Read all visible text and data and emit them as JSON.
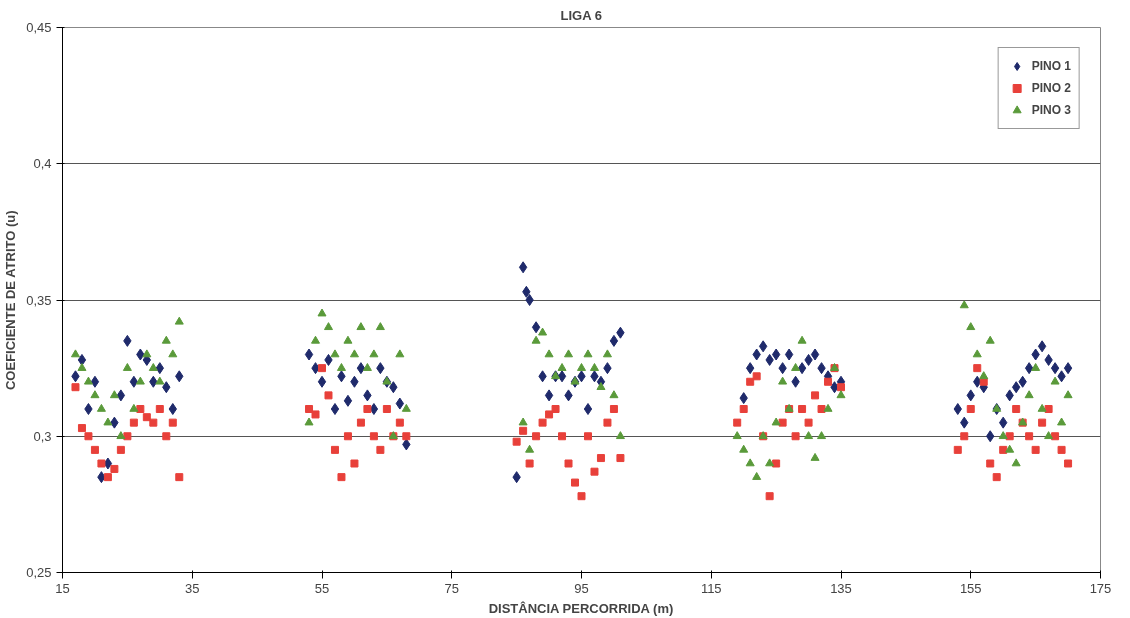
{
  "chart_data": {
    "type": "scatter",
    "title": "LIGA 6",
    "xlabel": "DISTÂNCIA PERCORRIDA (m)",
    "ylabel": "COEFICIENTE DE ATRITO (u)",
    "xlim": [
      15,
      175
    ],
    "xticks": [
      15,
      35,
      55,
      75,
      95,
      115,
      135,
      155,
      175
    ],
    "ylim": [
      0.25,
      0.45
    ],
    "yticks": [
      {
        "value": 0.25,
        "label": "0,25"
      },
      {
        "value": 0.3,
        "label": "0,3"
      },
      {
        "value": 0.35,
        "label": "0,35"
      },
      {
        "value": 0.4,
        "label": "0,4"
      },
      {
        "value": 0.45,
        "label": "0,45"
      }
    ],
    "grid": "y",
    "legend": "top right",
    "series": [
      {
        "name": "PINO 1",
        "color": "#1f2a6b",
        "marker": "diamond",
        "x": [
          17,
          18,
          19,
          20,
          21,
          22,
          23,
          24,
          25,
          26,
          27,
          28,
          29,
          30,
          31,
          32,
          33,
          53,
          54,
          55,
          56,
          57,
          58,
          59,
          60,
          61,
          62,
          63,
          64,
          65,
          66,
          67,
          68,
          85,
          86,
          86.5,
          87,
          88,
          89,
          90,
          91,
          92,
          93,
          94,
          95,
          96,
          97,
          98,
          99,
          100,
          101,
          120,
          121,
          122,
          123,
          124,
          125,
          126,
          127,
          128,
          129,
          130,
          131,
          132,
          133,
          134,
          135,
          153,
          154,
          155,
          156,
          157,
          158,
          159,
          160,
          161,
          162,
          163,
          164,
          165,
          166,
          167,
          168,
          169,
          170
        ],
        "values": [
          0.322,
          0.328,
          0.31,
          0.32,
          0.285,
          0.29,
          0.305,
          0.315,
          0.335,
          0.32,
          0.33,
          0.328,
          0.32,
          0.325,
          0.318,
          0.31,
          0.322,
          0.33,
          0.325,
          0.32,
          0.328,
          0.31,
          0.322,
          0.313,
          0.32,
          0.325,
          0.315,
          0.31,
          0.325,
          0.32,
          0.318,
          0.312,
          0.297,
          0.285,
          0.362,
          0.353,
          0.35,
          0.34,
          0.322,
          0.315,
          0.322,
          0.322,
          0.315,
          0.32,
          0.322,
          0.31,
          0.322,
          0.32,
          0.325,
          0.335,
          0.338,
          0.314,
          0.325,
          0.33,
          0.333,
          0.328,
          0.33,
          0.325,
          0.33,
          0.32,
          0.325,
          0.328,
          0.33,
          0.325,
          0.322,
          0.318,
          0.32,
          0.31,
          0.305,
          0.315,
          0.32,
          0.318,
          0.3,
          0.31,
          0.305,
          0.315,
          0.318,
          0.32,
          0.325,
          0.33,
          0.333,
          0.328,
          0.325,
          0.322,
          0.325
        ]
      },
      {
        "name": "PINO 2",
        "color": "#e8403a",
        "marker": "square",
        "x": [
          17,
          18,
          19,
          20,
          21,
          22,
          23,
          24,
          25,
          26,
          27,
          28,
          29,
          30,
          31,
          32,
          33,
          53,
          54,
          55,
          56,
          57,
          58,
          59,
          60,
          61,
          62,
          63,
          64,
          65,
          66,
          67,
          68,
          85,
          86,
          87,
          88,
          89,
          90,
          91,
          92,
          93,
          94,
          95,
          96,
          97,
          98,
          99,
          100,
          101,
          119,
          120,
          121,
          122,
          123,
          124,
          125,
          126,
          127,
          128,
          129,
          130,
          131,
          132,
          133,
          134,
          135,
          153,
          154,
          155,
          156,
          157,
          158,
          159,
          160,
          161,
          162,
          163,
          164,
          165,
          166,
          167,
          168,
          169,
          170
        ],
        "values": [
          0.318,
          0.303,
          0.3,
          0.295,
          0.29,
          0.285,
          0.288,
          0.295,
          0.3,
          0.305,
          0.31,
          0.307,
          0.305,
          0.31,
          0.3,
          0.305,
          0.285,
          0.31,
          0.308,
          0.325,
          0.315,
          0.295,
          0.285,
          0.3,
          0.29,
          0.305,
          0.31,
          0.3,
          0.295,
          0.31,
          0.3,
          0.305,
          0.3,
          0.298,
          0.302,
          0.29,
          0.3,
          0.305,
          0.308,
          0.31,
          0.3,
          0.29,
          0.283,
          0.278,
          0.3,
          0.287,
          0.292,
          0.305,
          0.31,
          0.292,
          0.305,
          0.31,
          0.32,
          0.322,
          0.3,
          0.278,
          0.29,
          0.305,
          0.31,
          0.3,
          0.31,
          0.305,
          0.315,
          0.31,
          0.32,
          0.325,
          0.318,
          0.295,
          0.3,
          0.31,
          0.325,
          0.32,
          0.29,
          0.285,
          0.295,
          0.3,
          0.31,
          0.305,
          0.3,
          0.295,
          0.305,
          0.31,
          0.3,
          0.295,
          0.29
        ]
      },
      {
        "name": "PINO 3",
        "color": "#5a9a3a",
        "marker": "triangle",
        "x": [
          17,
          18,
          19,
          20,
          21,
          22,
          23,
          24,
          25,
          26,
          27,
          28,
          29,
          30,
          31,
          32,
          33,
          53,
          54,
          55,
          56,
          57,
          58,
          59,
          60,
          61,
          62,
          63,
          64,
          65,
          66,
          67,
          68,
          86,
          87,
          88,
          89,
          90,
          91,
          92,
          93,
          94,
          95,
          96,
          97,
          98,
          99,
          100,
          101,
          119,
          120,
          121,
          122,
          123,
          124,
          125,
          126,
          127,
          128,
          129,
          130,
          131,
          132,
          133,
          134,
          135,
          154,
          155,
          156,
          157,
          158,
          159,
          160,
          161,
          162,
          163,
          164,
          165,
          166,
          167,
          168,
          169,
          170
        ],
        "values": [
          0.33,
          0.325,
          0.32,
          0.315,
          0.31,
          0.305,
          0.315,
          0.3,
          0.325,
          0.31,
          0.32,
          0.33,
          0.325,
          0.32,
          0.335,
          0.33,
          0.342,
          0.305,
          0.335,
          0.345,
          0.34,
          0.33,
          0.325,
          0.335,
          0.33,
          0.34,
          0.325,
          0.33,
          0.34,
          0.32,
          0.3,
          0.33,
          0.31,
          0.305,
          0.295,
          0.335,
          0.338,
          0.33,
          0.322,
          0.325,
          0.33,
          0.32,
          0.325,
          0.33,
          0.325,
          0.318,
          0.33,
          0.315,
          0.3,
          0.3,
          0.295,
          0.29,
          0.285,
          0.3,
          0.29,
          0.305,
          0.32,
          0.31,
          0.325,
          0.335,
          0.3,
          0.292,
          0.3,
          0.31,
          0.325,
          0.315,
          0.348,
          0.34,
          0.33,
          0.322,
          0.335,
          0.31,
          0.3,
          0.295,
          0.29,
          0.305,
          0.315,
          0.325,
          0.31,
          0.3,
          0.32,
          0.305,
          0.315
        ]
      }
    ]
  }
}
